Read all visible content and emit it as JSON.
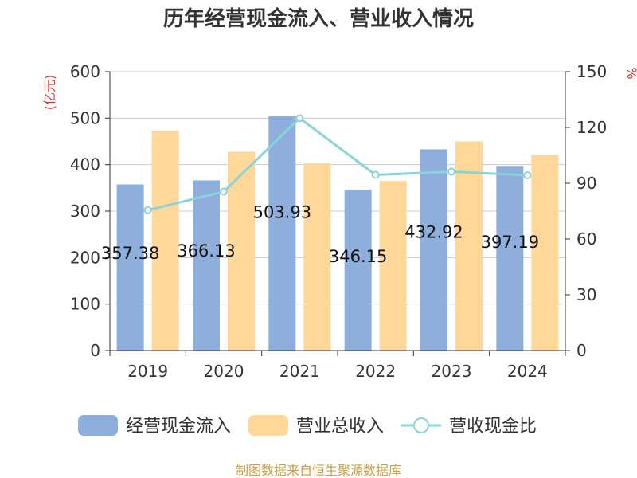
{
  "chart_data": {
    "type": "bar",
    "title": "历年经营现金流入、营业收入情况",
    "categories": [
      "2019",
      "2020",
      "2021",
      "2022",
      "2023",
      "2024"
    ],
    "series": [
      {
        "name": "经营现金流入",
        "kind": "bar",
        "axis": "left",
        "color": "#8eaedb",
        "values": [
          357.38,
          366.13,
          503.93,
          346.15,
          432.92,
          397.19
        ],
        "labels": [
          "357.38",
          "366.13",
          "503.93",
          "346.15",
          "432.92",
          "397.19"
        ]
      },
      {
        "name": "营业总收入",
        "kind": "bar",
        "axis": "left",
        "color": "#ffd899",
        "values": [
          473,
          428,
          403,
          365,
          450,
          421
        ]
      },
      {
        "name": "营收现金比",
        "kind": "line",
        "axis": "right",
        "color": "#88d4d8",
        "values": [
          75.5,
          85.5,
          125,
          94.5,
          96.2,
          94.3
        ]
      }
    ],
    "y_left": {
      "label": "(亿元)",
      "min": 0,
      "max": 600,
      "ticks": [
        0,
        100,
        200,
        300,
        400,
        500,
        600
      ]
    },
    "y_right": {
      "label": "%",
      "min": 0,
      "max": 150,
      "ticks": [
        0,
        30,
        60,
        90,
        120,
        150
      ]
    },
    "grid": true,
    "legend_position": "bottom",
    "source": "制图数据来自恒生聚源数据库",
    "colors": {
      "axis_label": "#e03030",
      "source": "#c8a046",
      "grid": "#cccccc",
      "text": "#333333"
    }
  }
}
